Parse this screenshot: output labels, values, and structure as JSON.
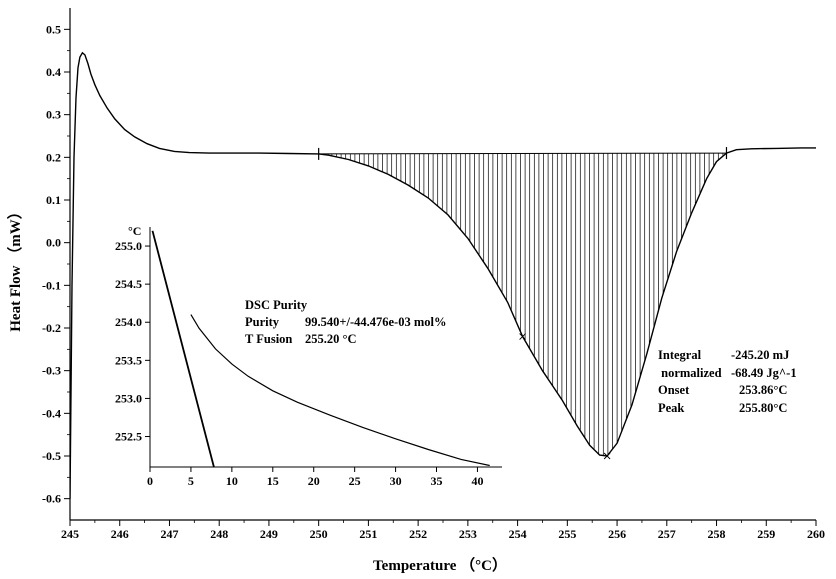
{
  "chart_data": [
    {
      "type": "line",
      "xlabel": "Temperature （°C）",
      "ylabel": "Heat Flow （mW）",
      "xlim": [
        245,
        260
      ],
      "ylim": [
        -0.65,
        0.55
      ],
      "x_ticks": [
        "245",
        "246",
        "247",
        "248",
        "249",
        "250",
        "251",
        "252",
        "253",
        "254",
        "255",
        "256",
        "257",
        "258",
        "259",
        "260"
      ],
      "y_ticks": [
        "0.5",
        "0.4",
        "0.3",
        "0.2",
        "0.1",
        "0.0",
        "-0.1",
        "-0.2",
        "-0.3",
        "-0.4",
        "-0.5",
        "-0.6"
      ],
      "grid": false,
      "series": [
        {
          "x": [
            245.0,
            245.04,
            245.08,
            245.12,
            245.16,
            245.2,
            245.25,
            245.3,
            245.36,
            245.42,
            245.5,
            245.6,
            245.75,
            245.9,
            246.1,
            246.3,
            246.55,
            246.8,
            247.1,
            247.4,
            247.8,
            248.2,
            248.8,
            249.4,
            250.0,
            250.2,
            250.6,
            251.0,
            251.4,
            251.8,
            252.2,
            252.6,
            253.0,
            253.4,
            253.8,
            254.1,
            254.5,
            254.9,
            255.2,
            255.45,
            255.65,
            255.8,
            256.0,
            256.3,
            256.6,
            256.9,
            257.2,
            257.5,
            257.8,
            258.0,
            258.2,
            258.4,
            258.7,
            259.2,
            259.7,
            260.0
          ],
          "y": [
            -0.6,
            -0.1,
            0.2,
            0.34,
            0.41,
            0.435,
            0.445,
            0.44,
            0.42,
            0.395,
            0.37,
            0.345,
            0.315,
            0.29,
            0.265,
            0.248,
            0.232,
            0.221,
            0.214,
            0.211,
            0.21,
            0.21,
            0.21,
            0.209,
            0.208,
            0.205,
            0.195,
            0.18,
            0.16,
            0.135,
            0.105,
            0.065,
            0.01,
            -0.06,
            -0.14,
            -0.22,
            -0.3,
            -0.37,
            -0.43,
            -0.475,
            -0.498,
            -0.5,
            -0.47,
            -0.38,
            -0.26,
            -0.13,
            -0.02,
            0.07,
            0.15,
            0.19,
            0.21,
            0.218,
            0.22,
            0.221,
            0.222,
            0.222
          ]
        }
      ],
      "shaded_region": {
        "x_start": 250.0,
        "x_end": 258.2
      },
      "markers": [
        {
          "x": 254.1,
          "y": -0.22
        },
        {
          "x": 255.8,
          "y": -0.5
        }
      ],
      "annotations": {
        "integral": {
          "label": "Integral",
          "value": "-245.20 mJ"
        },
        "normalized": {
          "label": " normalized",
          "value": "-68.49 Jg^-1"
        },
        "onset": {
          "label": "Onset",
          "value": "253.86°C"
        },
        "peak": {
          "label": "Peak",
          "value": "255.80°C"
        }
      }
    },
    {
      "type": "line",
      "title": "DSC Purity",
      "ylabel": "°C",
      "xlim": [
        0,
        43
      ],
      "ylim": [
        252.1,
        255.25
      ],
      "x_ticks": [
        "0",
        "5",
        "10",
        "15",
        "20",
        "25",
        "30",
        "35",
        "40"
      ],
      "y_ticks": [
        "255.0",
        "254.5",
        "254.0",
        "253.5",
        "253.0",
        "252.5"
      ],
      "purity": {
        "label": "Purity",
        "value": "99.540+/-44.476e-03 mol%"
      },
      "t_fusion": {
        "label": "T Fusion",
        "value": "255.20 °C"
      },
      "series": [
        {
          "x": [
            0.3,
            7.8
          ],
          "y": [
            255.2,
            252.1
          ]
        },
        {
          "x": [
            5.0,
            6.0,
            8.0,
            10.0,
            12.0,
            15.0,
            18.0,
            22.0,
            26.0,
            30.0,
            34.0,
            38.0,
            41.5
          ],
          "y": [
            254.1,
            253.92,
            253.65,
            253.45,
            253.29,
            253.1,
            252.95,
            252.78,
            252.62,
            252.47,
            252.33,
            252.2,
            252.12
          ]
        }
      ]
    }
  ]
}
